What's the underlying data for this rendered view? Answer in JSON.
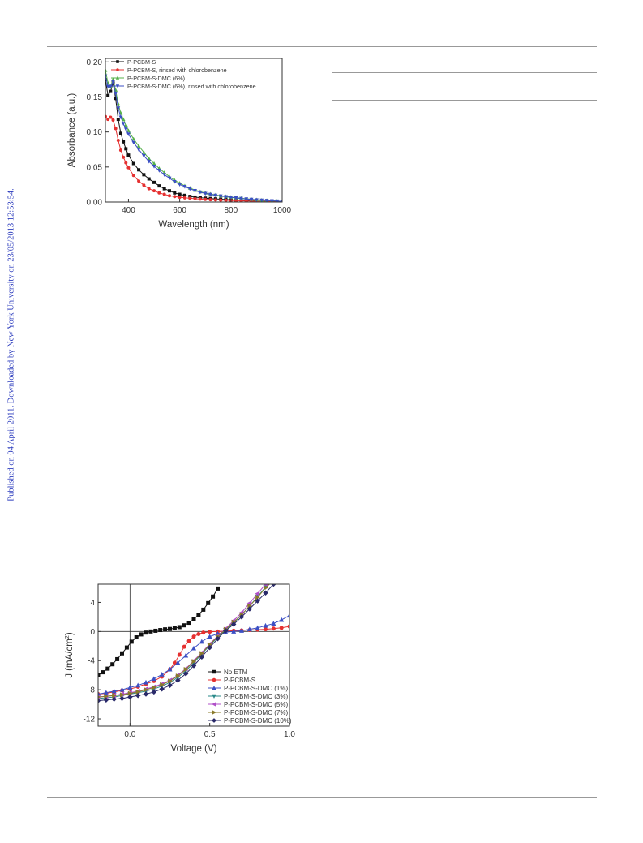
{
  "watermark": "Published on 04 April 2011. Downloaded by New York University on 23/05/2013 12:53:54.",
  "colors": {
    "black": "#111111",
    "red": "#e53030",
    "green": "#55b04a",
    "blue": "#3b4fc4",
    "teal": "#2a8a8a",
    "purple": "#b050c8",
    "olive": "#8a7a2a",
    "navy": "#2a2a6a"
  },
  "chart_data": [
    {
      "type": "line",
      "xlabel": "Wavelength (nm)",
      "ylabel": "Absorbance (a.u.)",
      "xlim": [
        310,
        1000
      ],
      "ylim": [
        0,
        0.205
      ],
      "xticks": [
        400,
        600,
        800,
        1000
      ],
      "yticks": [
        0.0,
        0.05,
        0.1,
        0.15,
        0.2
      ],
      "ytick_labels": [
        "0.00",
        "0.05",
        "0.10",
        "0.15",
        "0.20"
      ],
      "xtick_labels": [
        "400",
        "600",
        "800",
        "1000"
      ],
      "legend": "top-right",
      "series": [
        {
          "name": "P-PCBM-S",
          "color": "#111111",
          "marker": "square",
          "x": [
            310,
            320,
            330,
            340,
            350,
            360,
            370,
            380,
            390,
            400,
            420,
            440,
            460,
            480,
            500,
            520,
            540,
            560,
            580,
            600,
            620,
            640,
            660,
            680,
            700,
            720,
            740,
            760,
            780,
            800,
            820,
            840,
            860,
            880,
            900,
            920,
            940,
            960,
            980,
            1000
          ],
          "y": [
            0.175,
            0.152,
            0.158,
            0.17,
            0.148,
            0.118,
            0.098,
            0.086,
            0.076,
            0.067,
            0.055,
            0.046,
            0.039,
            0.033,
            0.028,
            0.023,
            0.019,
            0.016,
            0.013,
            0.011,
            0.0095,
            0.008,
            0.007,
            0.0062,
            0.0055,
            0.005,
            0.0045,
            0.004,
            0.0036,
            0.0032,
            0.0028,
            0.0024,
            0.002,
            0.0017,
            0.0014,
            0.0011,
            0.0009,
            0.0007,
            0.0005,
            0.0004
          ]
        },
        {
          "name": "P-PCBM-S, rinsed with chlorobenzene",
          "color": "#e53030",
          "marker": "circle",
          "x": [
            310,
            320,
            330,
            340,
            350,
            360,
            370,
            380,
            390,
            400,
            420,
            440,
            460,
            480,
            500,
            520,
            540,
            560,
            580,
            600,
            620,
            640,
            660,
            680,
            700,
            720,
            740,
            760,
            780,
            800,
            820,
            840,
            860,
            880,
            900,
            920,
            940,
            960,
            980,
            1000
          ],
          "y": [
            0.122,
            0.118,
            0.121,
            0.117,
            0.105,
            0.088,
            0.074,
            0.064,
            0.056,
            0.049,
            0.038,
            0.03,
            0.024,
            0.019,
            0.016,
            0.013,
            0.011,
            0.009,
            0.0078,
            0.0068,
            0.006,
            0.0053,
            0.0047,
            0.0042,
            0.0038,
            0.0034,
            0.0031,
            0.0028,
            0.0025,
            0.0022,
            0.002,
            0.0017,
            0.0015,
            0.0013,
            0.0011,
            0.0009,
            0.0008,
            0.0006,
            0.0005,
            0.0004
          ]
        },
        {
          "name": "P-PCBM-S-DMC (6%)",
          "color": "#55b04a",
          "marker": "triangle-up",
          "x": [
            310,
            320,
            330,
            340,
            350,
            360,
            370,
            380,
            390,
            400,
            420,
            440,
            460,
            480,
            500,
            520,
            540,
            560,
            580,
            600,
            620,
            640,
            660,
            680,
            700,
            720,
            740,
            760,
            780,
            800,
            820,
            840,
            860,
            880,
            900,
            920,
            940,
            960,
            980,
            1000
          ],
          "y": [
            0.188,
            0.17,
            0.165,
            0.175,
            0.16,
            0.14,
            0.127,
            0.118,
            0.11,
            0.102,
            0.09,
            0.08,
            0.071,
            0.062,
            0.055,
            0.048,
            0.042,
            0.036,
            0.031,
            0.027,
            0.023,
            0.02,
            0.017,
            0.0148,
            0.013,
            0.0115,
            0.0102,
            0.009,
            0.008,
            0.007,
            0.0062,
            0.0054,
            0.0047,
            0.004,
            0.0034,
            0.0028,
            0.0023,
            0.0018,
            0.0014,
            0.001
          ]
        },
        {
          "name": "P-PCBM-S-DMC (6%), rinsed with chlorobenzene",
          "color": "#3b4fc4",
          "marker": "triangle-down",
          "x": [
            310,
            320,
            330,
            340,
            350,
            360,
            370,
            380,
            390,
            400,
            420,
            440,
            460,
            480,
            500,
            520,
            540,
            560,
            580,
            600,
            620,
            640,
            660,
            680,
            700,
            720,
            740,
            760,
            780,
            800,
            820,
            840,
            860,
            880,
            900,
            920,
            940,
            960,
            980,
            1000
          ],
          "y": [
            0.18,
            0.165,
            0.165,
            0.172,
            0.155,
            0.134,
            0.121,
            0.112,
            0.104,
            0.097,
            0.085,
            0.075,
            0.066,
            0.058,
            0.051,
            0.045,
            0.039,
            0.034,
            0.029,
            0.025,
            0.022,
            0.0188,
            0.0162,
            0.014,
            0.0122,
            0.0108,
            0.0096,
            0.0085,
            0.0075,
            0.0066,
            0.0058,
            0.005,
            0.0043,
            0.0037,
            0.0031,
            0.0026,
            0.0021,
            0.0017,
            0.0013,
            0.001
          ]
        }
      ]
    },
    {
      "type": "line",
      "xlabel": "Voltage (V)",
      "ylabel": "J (mA/cm",
      "ylabel_sup": "2",
      "ylabel_close": ")",
      "xlim": [
        -0.2,
        1.0
      ],
      "ylim": [
        -13,
        6.5
      ],
      "xticks": [
        0.0,
        0.5,
        1.0
      ],
      "xtick_labels": [
        "0.0",
        "0.5",
        "1.0"
      ],
      "yticks": [
        -12,
        -8,
        -4,
        0,
        4
      ],
      "ytick_labels": [
        "-12",
        "-8",
        "-4",
        "0",
        "4"
      ],
      "legend": "bottom-right",
      "series": [
        {
          "name": "No ETM",
          "color": "#111111",
          "marker": "square",
          "x": [
            -0.2,
            -0.17,
            -0.14,
            -0.11,
            -0.08,
            -0.05,
            -0.02,
            0.01,
            0.04,
            0.07,
            0.1,
            0.13,
            0.16,
            0.19,
            0.22,
            0.25,
            0.28,
            0.31,
            0.34,
            0.37,
            0.4,
            0.43,
            0.46,
            0.49,
            0.52,
            0.55
          ],
          "y": [
            -6.0,
            -5.6,
            -5.1,
            -4.5,
            -3.8,
            -3.0,
            -2.2,
            -1.4,
            -0.8,
            -0.4,
            -0.15,
            0.0,
            0.1,
            0.2,
            0.3,
            0.35,
            0.45,
            0.6,
            0.85,
            1.2,
            1.7,
            2.3,
            3.0,
            3.9,
            4.8,
            5.9
          ]
        },
        {
          "name": "P-PCBM-S",
          "color": "#e53030",
          "marker": "circle",
          "x": [
            -0.2,
            -0.15,
            -0.1,
            -0.05,
            0.0,
            0.05,
            0.1,
            0.15,
            0.2,
            0.25,
            0.28,
            0.31,
            0.34,
            0.37,
            0.4,
            0.43,
            0.46,
            0.5,
            0.55,
            0.6,
            0.65,
            0.7,
            0.75,
            0.8,
            0.85,
            0.9,
            0.95,
            1.0
          ],
          "y": [
            -8.6,
            -8.5,
            -8.3,
            -8.1,
            -7.9,
            -7.6,
            -7.2,
            -6.8,
            -6.2,
            -5.2,
            -4.3,
            -3.2,
            -2.1,
            -1.3,
            -0.7,
            -0.35,
            -0.15,
            -0.05,
            0.0,
            0.05,
            0.1,
            0.15,
            0.2,
            0.25,
            0.3,
            0.4,
            0.5,
            0.7
          ]
        },
        {
          "name": "P-PCBM-S-DMC (1%)",
          "color": "#3b4fc4",
          "marker": "triangle-up",
          "x": [
            -0.2,
            -0.15,
            -0.1,
            -0.05,
            0.0,
            0.05,
            0.1,
            0.15,
            0.2,
            0.25,
            0.3,
            0.35,
            0.4,
            0.45,
            0.5,
            0.55,
            0.6,
            0.65,
            0.7,
            0.75,
            0.8,
            0.85,
            0.9,
            0.95,
            1.0
          ],
          "y": [
            -8.6,
            -8.4,
            -8.2,
            -8.0,
            -7.7,
            -7.4,
            -7.0,
            -6.5,
            -5.9,
            -5.2,
            -4.3,
            -3.3,
            -2.3,
            -1.4,
            -0.7,
            -0.3,
            -0.1,
            0.0,
            0.1,
            0.3,
            0.5,
            0.8,
            1.1,
            1.6,
            2.2
          ]
        },
        {
          "name": "P-PCBM-S-DMC (3%)",
          "color": "#2a8a8a",
          "marker": "triangle-down",
          "x": [
            -0.2,
            -0.15,
            -0.1,
            -0.05,
            0.0,
            0.05,
            0.1,
            0.15,
            0.2,
            0.25,
            0.3,
            0.35,
            0.4,
            0.45,
            0.5,
            0.55,
            0.6,
            0.65,
            0.7,
            0.75,
            0.8,
            0.85,
            0.9
          ],
          "y": [
            -9.2,
            -9.1,
            -9.0,
            -8.8,
            -8.6,
            -8.4,
            -8.2,
            -7.9,
            -7.5,
            -7.0,
            -6.3,
            -5.4,
            -4.3,
            -3.1,
            -1.9,
            -0.8,
            0.2,
            1.2,
            2.3,
            3.5,
            4.8,
            6.1,
            7.0
          ]
        },
        {
          "name": "P-PCBM-S-DMC (5%)",
          "color": "#b050c8",
          "marker": "triangle-left",
          "x": [
            -0.2,
            -0.15,
            -0.1,
            -0.05,
            0.0,
            0.05,
            0.1,
            0.15,
            0.2,
            0.25,
            0.3,
            0.35,
            0.4,
            0.45,
            0.5,
            0.55,
            0.6,
            0.65,
            0.7,
            0.75,
            0.8,
            0.85,
            0.9
          ],
          "y": [
            -9.0,
            -8.9,
            -8.8,
            -8.6,
            -8.4,
            -8.2,
            -7.9,
            -7.6,
            -7.2,
            -6.7,
            -6.0,
            -5.1,
            -4.0,
            -2.9,
            -1.7,
            -0.6,
            0.4,
            1.5,
            2.6,
            3.9,
            5.2,
            6.5,
            7.0
          ]
        },
        {
          "name": "P-PCBM-S-DMC (7%)",
          "color": "#8a7a2a",
          "marker": "triangle-right",
          "x": [
            -0.2,
            -0.15,
            -0.1,
            -0.05,
            0.0,
            0.05,
            0.1,
            0.15,
            0.2,
            0.25,
            0.3,
            0.35,
            0.4,
            0.45,
            0.5,
            0.55,
            0.6,
            0.65,
            0.7,
            0.75,
            0.8,
            0.85,
            0.9
          ],
          "y": [
            -9.0,
            -8.9,
            -8.8,
            -8.7,
            -8.5,
            -8.3,
            -8.0,
            -7.7,
            -7.3,
            -6.8,
            -6.1,
            -5.2,
            -4.1,
            -3.0,
            -1.8,
            -0.7,
            0.3,
            1.3,
            2.3,
            3.5,
            4.7,
            6.0,
            7.0
          ]
        },
        {
          "name": "P-PCBM-S-DMC (10%)",
          "color": "#2a2a6a",
          "marker": "diamond",
          "x": [
            -0.2,
            -0.15,
            -0.1,
            -0.05,
            0.0,
            0.05,
            0.1,
            0.15,
            0.2,
            0.25,
            0.3,
            0.35,
            0.4,
            0.45,
            0.5,
            0.55,
            0.6,
            0.65,
            0.7,
            0.75,
            0.8,
            0.85,
            0.9
          ],
          "y": [
            -9.5,
            -9.4,
            -9.3,
            -9.2,
            -9.0,
            -8.8,
            -8.6,
            -8.3,
            -7.9,
            -7.4,
            -6.7,
            -5.8,
            -4.7,
            -3.5,
            -2.2,
            -1.0,
            0.1,
            1.0,
            2.0,
            3.1,
            4.2,
            5.3,
            6.5
          ]
        }
      ]
    }
  ]
}
